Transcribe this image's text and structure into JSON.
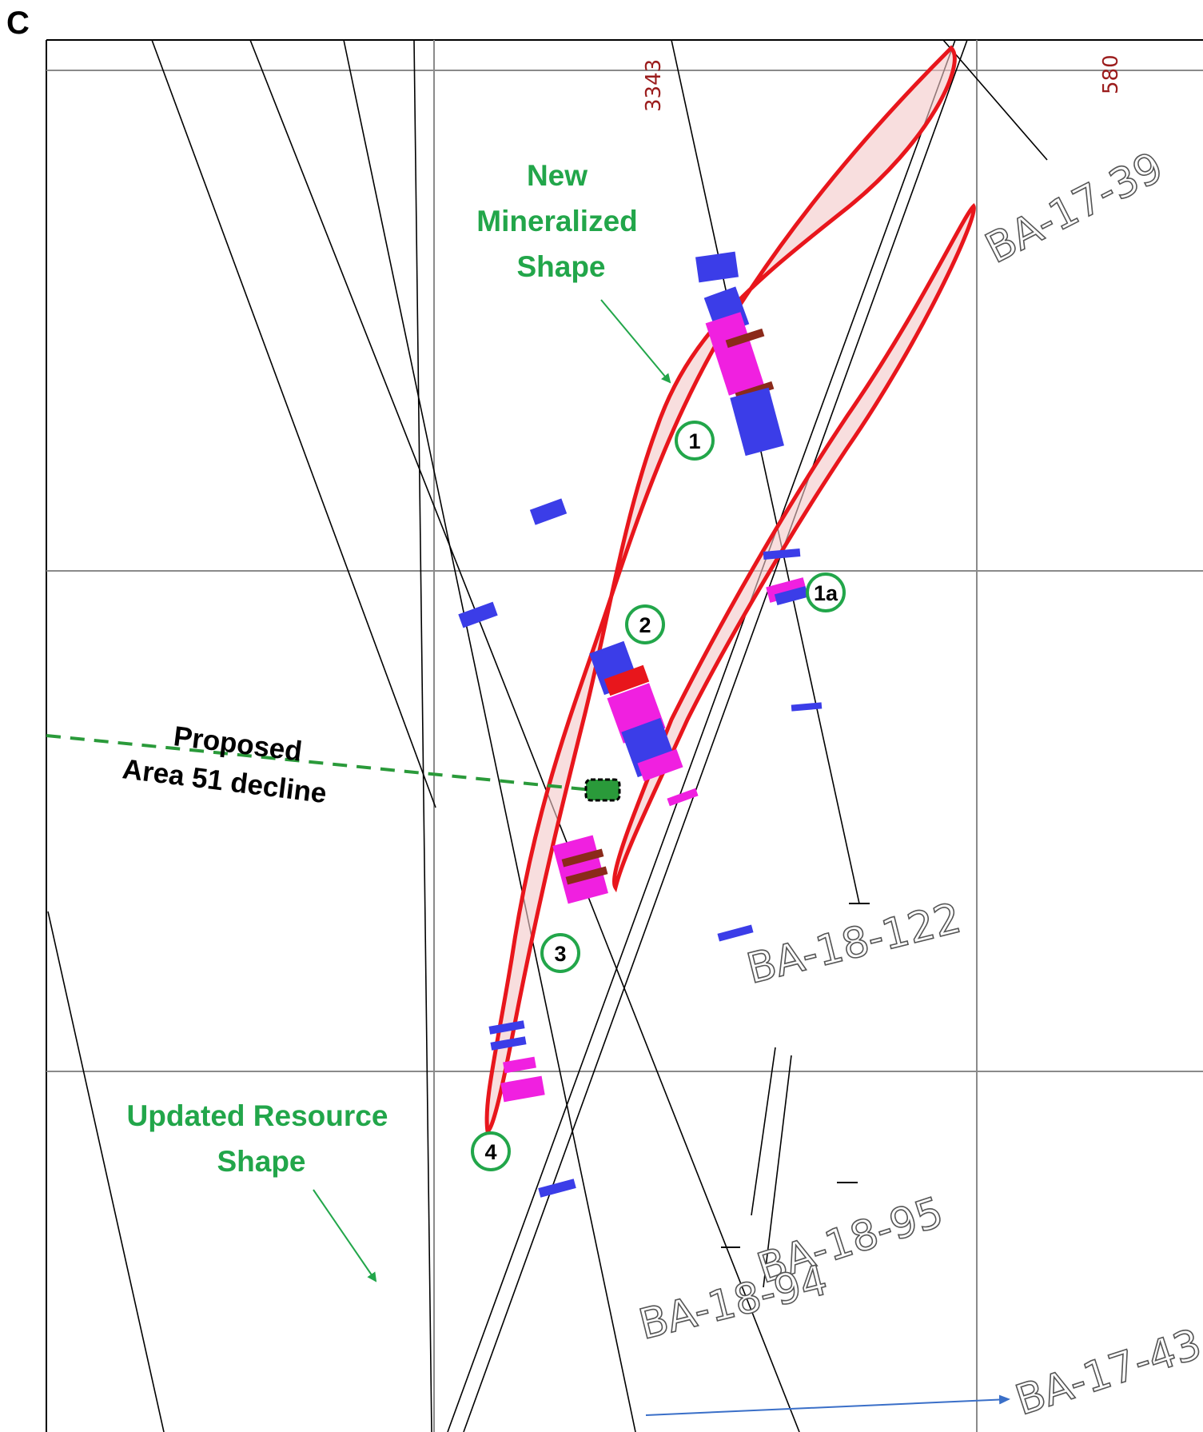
{
  "panel": {
    "letter": "C"
  },
  "coordinates": {
    "left": "3343",
    "right": "580"
  },
  "drill_holes": {
    "ba_17_39": "BA-17-39",
    "ba_18_122": "BA-18-122",
    "ba_18_95": "BA-18-95",
    "ba_18_94": "BA-18-94",
    "ba_17_43": "BA-17-43"
  },
  "annotations": {
    "new_shape": [
      "New",
      "Mineralized",
      "Shape"
    ],
    "updated_shape": [
      "Updated Resource",
      "Shape"
    ],
    "decline": [
      "Proposed",
      "Area 51 decline"
    ]
  },
  "markers": {
    "m1": "1",
    "m1a": "1a",
    "m2": "2",
    "m3": "3",
    "m4": "4"
  },
  "colors": {
    "mineralized_outline": "#e8161c",
    "mineralized_fill": "#f4c8c8",
    "assay_blue": "#3b3de8",
    "assay_magenta": "#f020e0",
    "assay_brown": "#8b2a1a",
    "label_green": "#22a64a",
    "decline_green": "#2a9a3a",
    "coordinate_red": "#9b1c1c",
    "arrow_blue": "#3a6fc8"
  }
}
